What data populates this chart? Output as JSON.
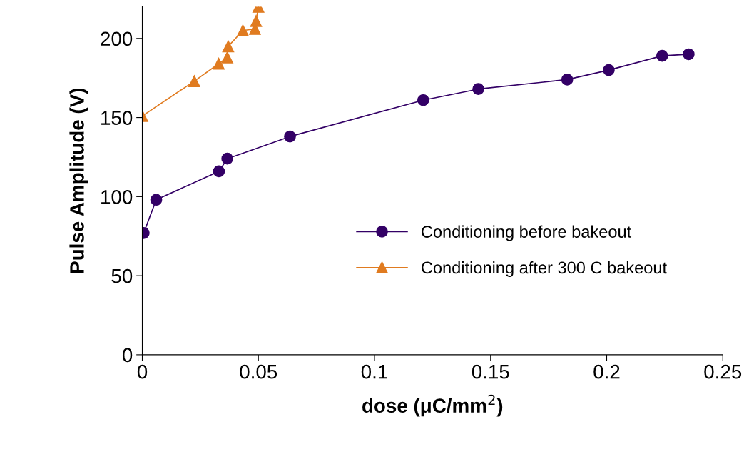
{
  "chart_data": {
    "type": "line",
    "xlabel": "dose (μC/mm$^{2}$)",
    "ylabel": "Pulse Amplitude (V)",
    "xlim": [
      0,
      0.25
    ],
    "xticks": [
      0,
      0.05,
      0.1,
      0.15,
      0.2,
      0.25
    ],
    "ylim": [
      0,
      220
    ],
    "yticks": [
      0,
      50,
      100,
      150,
      200
    ],
    "grid": false,
    "legend": "bottom right",
    "series": [
      {
        "name": "Conditioning before bakeout",
        "color": "#330066",
        "marker": "circle",
        "x": [
          0.0006,
          0.006,
          0.033,
          0.0366,
          0.0636,
          0.121,
          0.1447,
          0.183,
          0.2009,
          0.2239,
          0.2353
        ],
        "values": [
          77,
          98,
          116,
          124,
          138,
          161,
          168,
          174,
          180,
          189,
          190
        ]
      },
      {
        "name": "Conditioning after 300 C bakeout",
        "color": "#e07b20",
        "marker": "triangle",
        "x": [
          0,
          0.0224,
          0.0329,
          0.0366,
          0.037,
          0.0433,
          0.0485,
          0.049,
          0.05
        ],
        "values": [
          151,
          173,
          184,
          188,
          195,
          205,
          206,
          211,
          220
        ]
      }
    ]
  }
}
